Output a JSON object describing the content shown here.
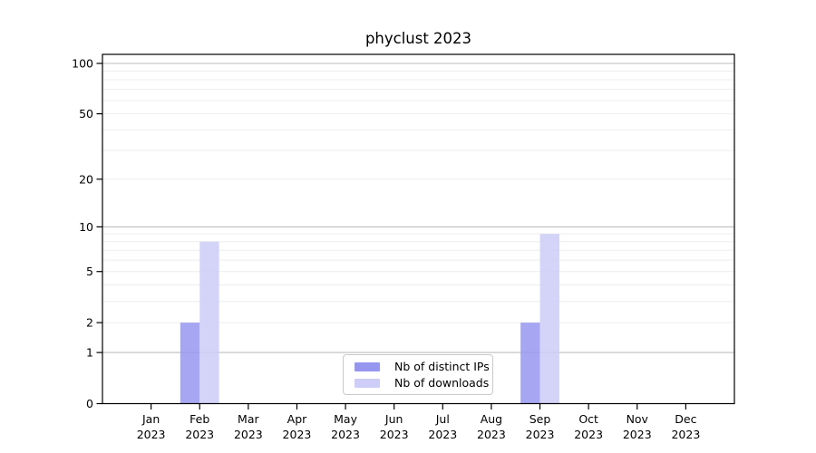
{
  "chart_data": {
    "type": "bar",
    "title": "phyclust 2023",
    "year_label": "2023",
    "categories": [
      "Jan",
      "Feb",
      "Mar",
      "Apr",
      "May",
      "Jun",
      "Jul",
      "Aug",
      "Sep",
      "Oct",
      "Nov",
      "Dec"
    ],
    "series": [
      {
        "name": "Nb of distinct IPs",
        "color": "#9696f0",
        "values": [
          0,
          2,
          0,
          0,
          0,
          0,
          0,
          0,
          2,
          0,
          0,
          0
        ]
      },
      {
        "name": "Nb of downloads",
        "color": "#cdcdf8",
        "values": [
          0,
          8,
          0,
          0,
          0,
          0,
          0,
          0,
          9,
          0,
          0,
          0
        ]
      }
    ],
    "xlabel": "",
    "ylabel": "",
    "ylim": [
      0,
      100
    ],
    "yticks": [
      0,
      1,
      2,
      5,
      10,
      20,
      50,
      100
    ],
    "scale": "log1p",
    "grid": true,
    "y_major_gridlines": [
      1,
      10,
      100
    ],
    "y_minor_gridlines": [
      2,
      3,
      4,
      5,
      6,
      7,
      8,
      9,
      20,
      30,
      40,
      50,
      60,
      70,
      80,
      90
    ],
    "legend_position": "lower-center",
    "colors": {
      "axis": "#000000",
      "major_grid": "#bdbdbd",
      "minor_grid": "#ededed",
      "background": "#ffffff"
    }
  }
}
